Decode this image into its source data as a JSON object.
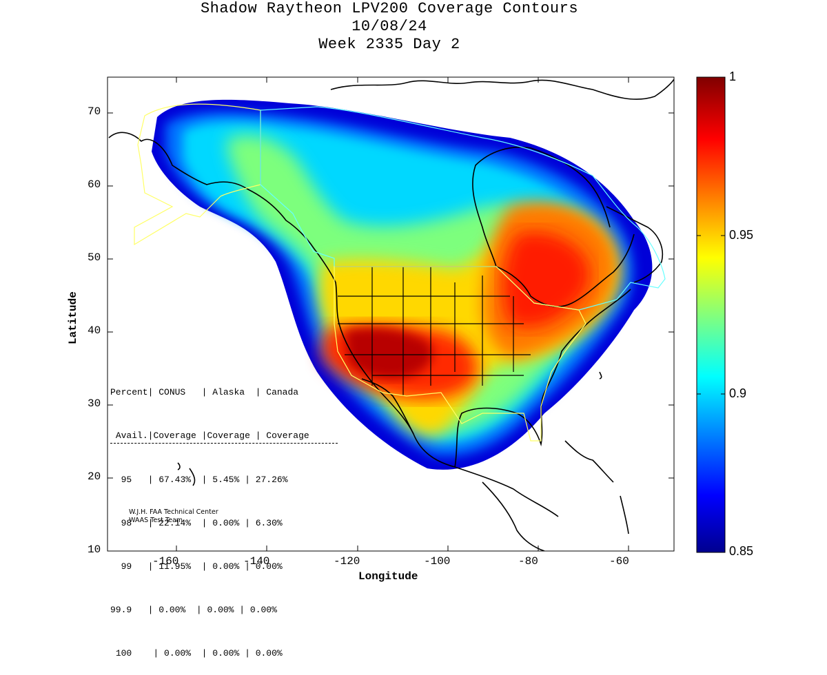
{
  "title": {
    "line1": "Shadow Raytheon LPV200 Coverage Contours",
    "line2": "10/08/24",
    "line3": "Week 2335 Day 2"
  },
  "axes": {
    "xlabel": "Longitude",
    "ylabel": "Latitude",
    "x_ticks": [
      "-160",
      "-140",
      "-120",
      "-100",
      "-80",
      "-60"
    ],
    "y_ticks": [
      "10",
      "20",
      "30",
      "40",
      "50",
      "60",
      "70"
    ],
    "xlim": [
      -175,
      -50
    ],
    "ylim": [
      10,
      75
    ]
  },
  "colorbar": {
    "ticks": [
      "1",
      "0.95",
      "0.9",
      "0.85"
    ],
    "range": [
      0.85,
      1
    ],
    "colormap": "jet"
  },
  "stats_table": {
    "header1": [
      "Percent",
      "CONUS",
      "Alaska",
      "Canada"
    ],
    "header2": [
      "Avail.",
      "Coverage",
      "Coverage",
      "Coverage"
    ],
    "rows": [
      [
        "95",
        "67.43%",
        "5.45%",
        "27.26%"
      ],
      [
        "98",
        "22.14%",
        "0.00%",
        "6.30%"
      ],
      [
        "99",
        "11.95%",
        "0.00%",
        "0.00%"
      ],
      [
        "99.9",
        "0.00%",
        "0.00%",
        "0.00%"
      ],
      [
        "100",
        "0.00%",
        "0.00%",
        "0.00%"
      ]
    ]
  },
  "credit": {
    "line1": "W.J.H. FAA Technical Center",
    "line2": "WAAS Test Team"
  },
  "colors": {
    "service_boundary_us": "#ffff66",
    "service_boundary_canada": "#66ffff"
  }
}
